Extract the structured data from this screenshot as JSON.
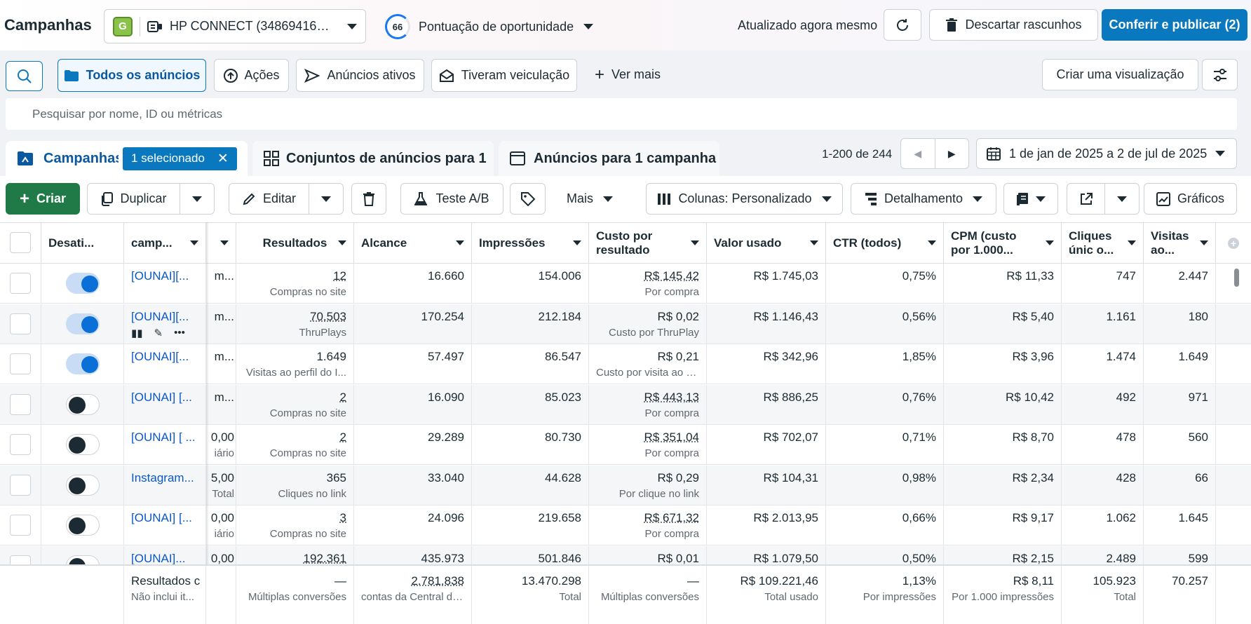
{
  "header": {
    "title": "Campanhas",
    "account_badge": "G",
    "account_name": "HP CONNECT (3486941688...",
    "score_value": "66",
    "score_label": "Pontuação de oportunidade",
    "updated": "Atualizado agora mesmo",
    "discard_label": "Descartar rascunhos",
    "publish_label": "Conferir e publicar (2)"
  },
  "filters": {
    "all_ads": "Todos os anúncios",
    "actions": "Ações",
    "active_ads": "Anúncios ativos",
    "delivered": "Tiveram veiculação",
    "see_more": "Ver mais",
    "create_view": "Criar uma visualização"
  },
  "search": {
    "placeholder": "Pesquisar por nome, ID ou métricas"
  },
  "tabs": {
    "campaigns": "Campanhas",
    "selected_badge": "1 selecionado",
    "adsets": "Conjuntos de anúncios para 1",
    "ads": "Anúncios para 1 campanha"
  },
  "pager": {
    "range": "1-200 de 244",
    "date_range": "1 de jan de 2025 a 2 de jul de 2025"
  },
  "toolbar": {
    "create": "Criar",
    "duplicate": "Duplicar",
    "edit": "Editar",
    "ab_test": "Teste A/B",
    "more": "Mais",
    "columns": "Colunas: Personalizado",
    "breakdown": "Detalhamento",
    "charts": "Gráficos"
  },
  "columns": {
    "off": "Desati...",
    "campaign": "camp...",
    "results": "Resultados",
    "reach": "Alcance",
    "impressions": "Impressões",
    "cost_per_result_1": "Custo por",
    "cost_per_result_2": "resultado",
    "spent": "Valor usado",
    "ctr": "CTR (todos)",
    "cpm_1": "CPM (custo",
    "cpm_2": "por 1.000...",
    "clicks_1": "Cliques",
    "clicks_2": "únic o...",
    "visits_1": "Visitas",
    "visits_2": "ao..."
  },
  "rows": [
    {
      "on": true,
      "name": "[OUNAI][...",
      "budget": "m...",
      "budget_sub": "",
      "results": "12",
      "results_sub": "Compras no site",
      "results_dotted": true,
      "reach": "16.660",
      "impressions": "154.006",
      "cpr": "R$ 145,42",
      "cpr_sub": "Por compra",
      "cpr_dotted": true,
      "spent": "R$ 1.745,03",
      "ctr": "0,75%",
      "cpm": "R$ 11,33",
      "clicks": "747",
      "visits": "2.447"
    },
    {
      "on": true,
      "name": "[OUNAI][...",
      "budget": "m...",
      "budget_sub": "",
      "results": "70.503",
      "results_sub": "ThruPlays",
      "results_dotted": true,
      "reach": "170.254",
      "impressions": "212.184",
      "cpr": "R$ 0,02",
      "cpr_sub": "Custo por ThruPlay",
      "cpr_dotted": false,
      "spent": "R$ 1.146,43",
      "ctr": "0,56%",
      "cpm": "R$ 5,40",
      "clicks": "1.161",
      "visits": "180"
    },
    {
      "on": true,
      "name": "[OUNAI][...",
      "budget": "m...",
      "budget_sub": "",
      "results": "1.649",
      "results_sub": "Visitas ao perfil do I...",
      "results_dotted": false,
      "reach": "57.497",
      "impressions": "86.547",
      "cpr": "R$ 0,21",
      "cpr_sub": "Custo por visita ao p...",
      "cpr_dotted": false,
      "spent": "R$ 342,96",
      "ctr": "1,85%",
      "cpm": "R$ 3,96",
      "clicks": "1.474",
      "visits": "1.649"
    },
    {
      "on": false,
      "name": "[OUNAI] [...",
      "budget": "m...",
      "budget_sub": "",
      "results": "2",
      "results_sub": "Compras no site",
      "results_dotted": true,
      "reach": "16.090",
      "impressions": "85.023",
      "cpr": "R$ 443,13",
      "cpr_sub": "Por compra",
      "cpr_dotted": true,
      "spent": "R$ 886,25",
      "ctr": "0,76%",
      "cpm": "R$ 10,42",
      "clicks": "492",
      "visits": "971"
    },
    {
      "on": false,
      "name": "[OUNAI] [ ...",
      "budget": "0,00",
      "budget_sub": "iário",
      "results": "2",
      "results_sub": "Compras no site",
      "results_dotted": true,
      "reach": "29.289",
      "impressions": "80.730",
      "cpr": "R$ 351,04",
      "cpr_sub": "Por compra",
      "cpr_dotted": true,
      "spent": "R$ 702,07",
      "ctr": "0,71%",
      "cpm": "R$ 8,70",
      "clicks": "478",
      "visits": "560"
    },
    {
      "on": false,
      "name": "Instagram...",
      "budget": "5,00",
      "budget_sub": "Total",
      "results": "365",
      "results_sub": "Cliques no link",
      "results_dotted": false,
      "reach": "33.040",
      "impressions": "44.628",
      "cpr": "R$ 0,29",
      "cpr_sub": "Por clique no link",
      "cpr_dotted": false,
      "spent": "R$ 104,31",
      "ctr": "0,98%",
      "cpm": "R$ 2,34",
      "clicks": "428",
      "visits": "66"
    },
    {
      "on": false,
      "name": "[OUNAI] [...",
      "budget": "0,00",
      "budget_sub": "iário",
      "results": "3",
      "results_sub": "Compras no site",
      "results_dotted": true,
      "reach": "24.096",
      "impressions": "219.658",
      "cpr": "R$ 671,32",
      "cpr_sub": "Por compra",
      "cpr_dotted": true,
      "spent": "R$ 2.013,95",
      "ctr": "0,66%",
      "cpm": "R$ 9,17",
      "clicks": "1.062",
      "visits": "1.645"
    },
    {
      "on": false,
      "name": "[OUNAI]...",
      "budget": "0,00",
      "budget_sub": "",
      "results": "192.361",
      "results_sub": "",
      "results_dotted": true,
      "reach": "435.973",
      "impressions": "501.846",
      "cpr": "R$ 0,01",
      "cpr_sub": "",
      "cpr_dotted": false,
      "spent": "R$ 1.079,50",
      "ctr": "0,50%",
      "cpm": "R$ 2,15",
      "clicks": "2.489",
      "visits": "599"
    }
  ],
  "totals": {
    "label": "Resultados c",
    "label_sub": "Não inclui it...",
    "results": "—",
    "results_sub": "Múltiplas conversões",
    "reach": "2.781.838",
    "reach_sub": "contas da Central de...",
    "impressions": "13.470.298",
    "impressions_sub": "Total",
    "cpr": "—",
    "cpr_sub": "Múltiplas conversões",
    "spent": "R$ 109.221,46",
    "spent_sub": "Total usado",
    "ctr": "1,13%",
    "ctr_sub": "Por impressões",
    "cpm": "R$ 8,11",
    "cpm_sub": "Por 1.000 impressões",
    "clicks": "105.923",
    "clicks_sub": "Total",
    "visits": "70.257"
  },
  "colors": {
    "accent": "#0a78be",
    "create": "#1f7a48"
  }
}
